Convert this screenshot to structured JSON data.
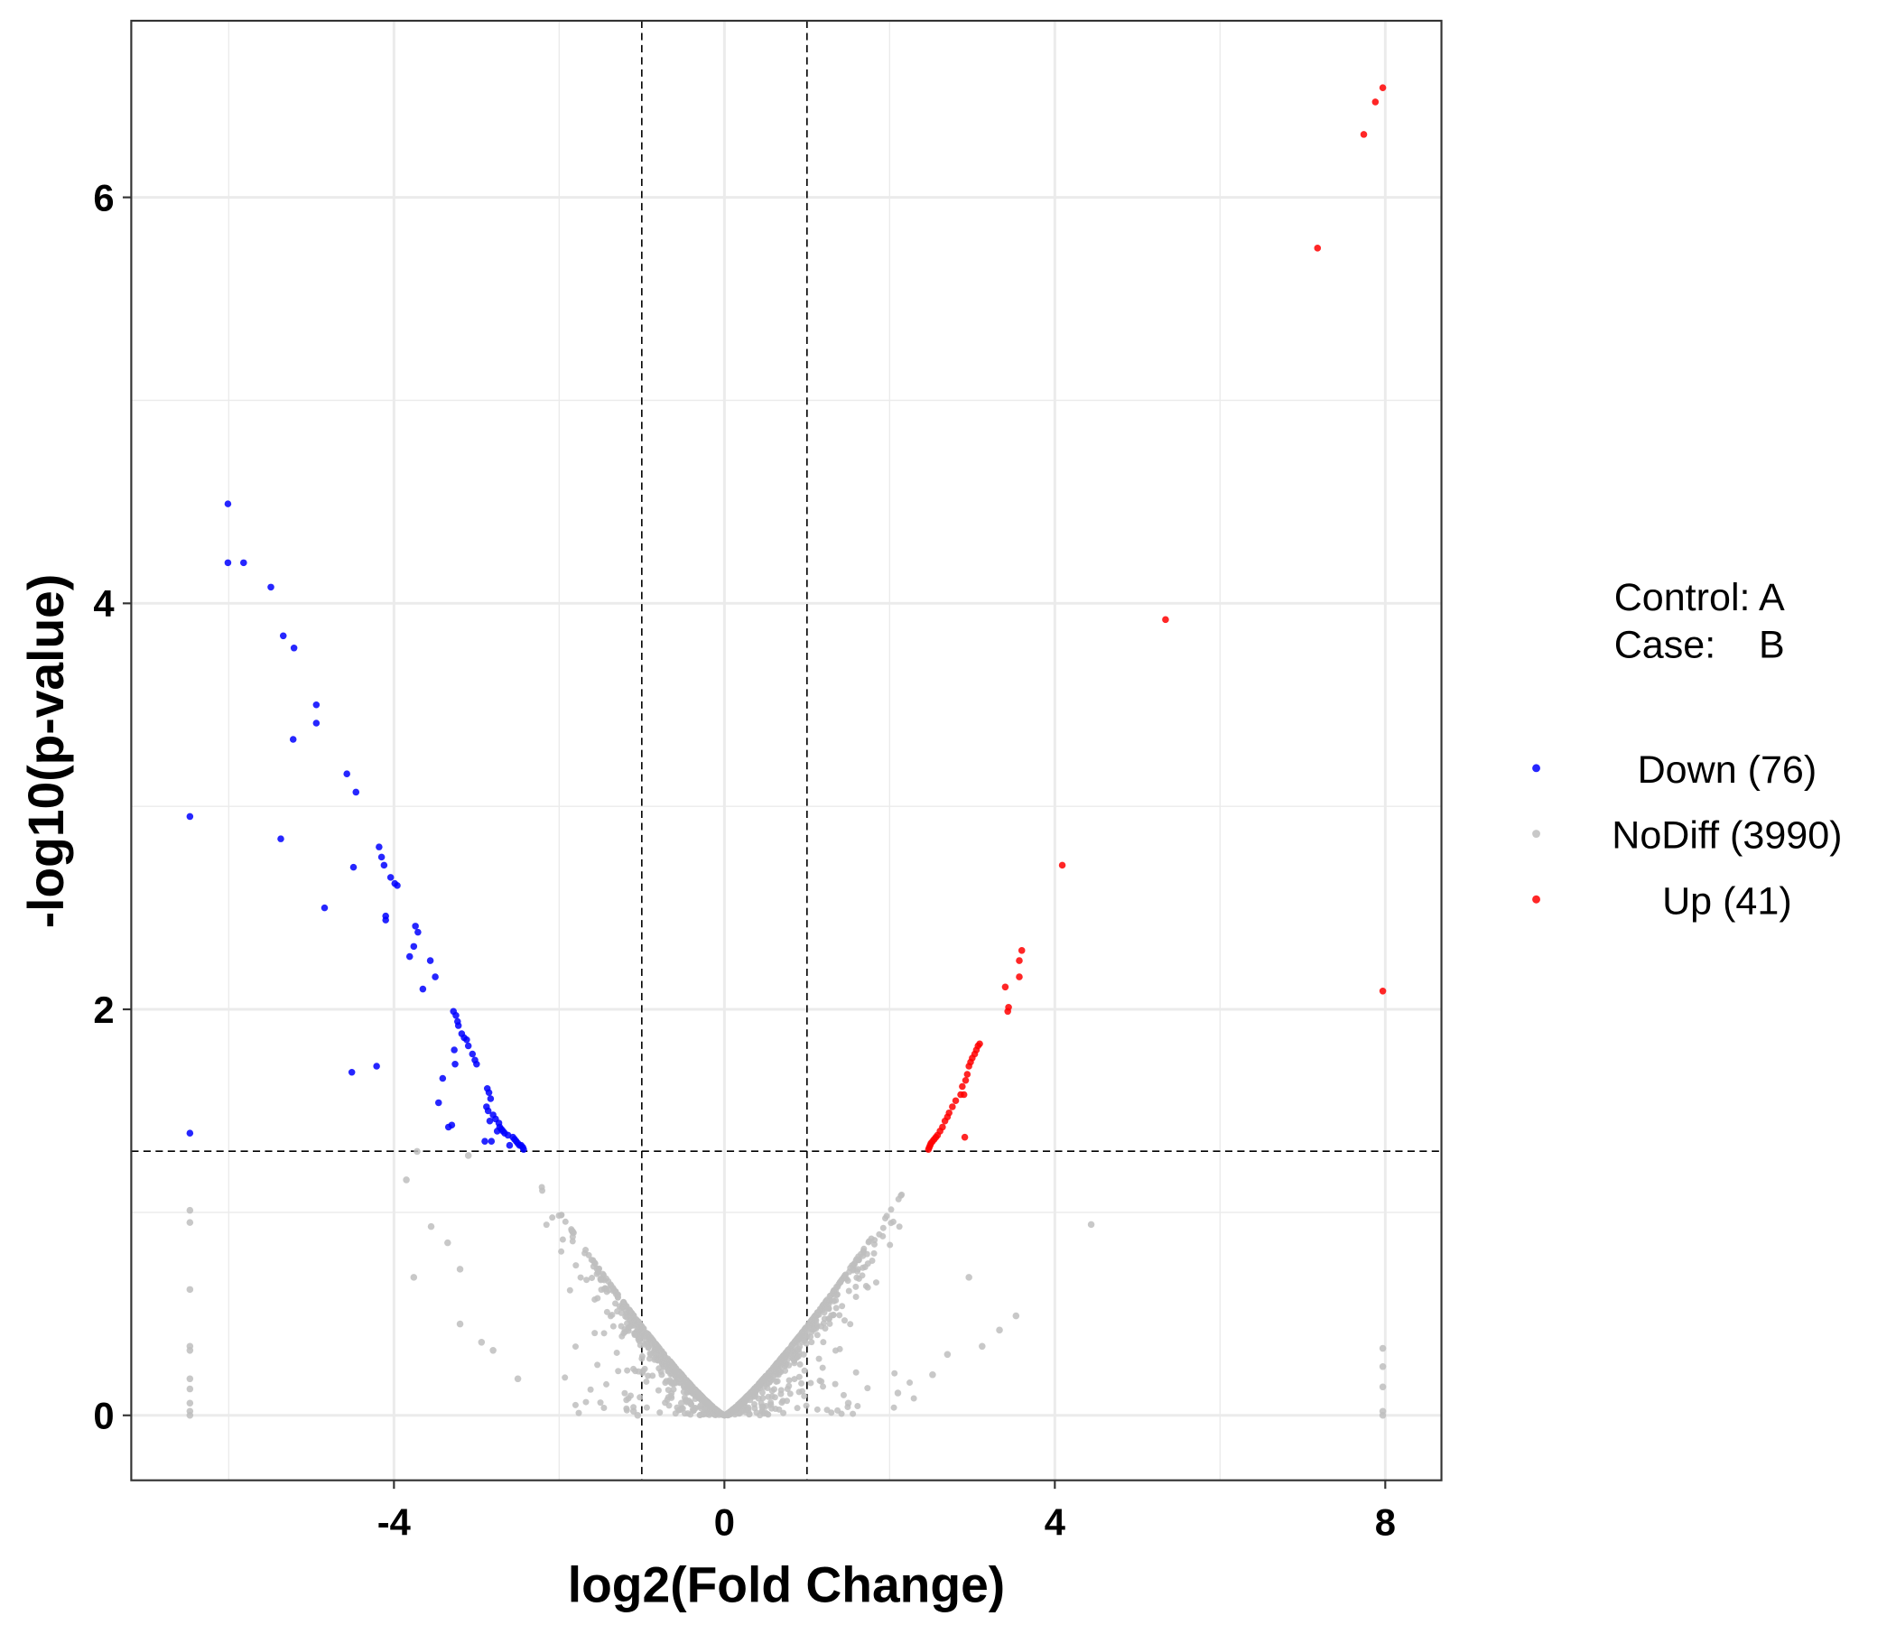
{
  "chart_data": {
    "type": "scatter",
    "title": "",
    "xlabel": "log2(Fold Change)",
    "ylabel": "-log10(p-value)",
    "xlim": [
      -7.18,
      8.68
    ],
    "ylim": [
      -0.32,
      6.87
    ],
    "xticks": [
      -4,
      0,
      4,
      8
    ],
    "xtick_labels": [
      "-4",
      "0",
      "4",
      "8"
    ],
    "yticks": [
      0,
      2,
      4,
      6
    ],
    "ytick_labels": [
      "0",
      "2",
      "4",
      "6"
    ],
    "grid": true,
    "thresholds": {
      "fc_lines": [
        -1,
        1
      ],
      "pvalue_line": 1.301
    },
    "annotation": {
      "control_line": "Control: A",
      "case_line": "Case:    B"
    },
    "legend_position": "right",
    "colors": {
      "Down": "#0000ff",
      "NoDiff": "#bebebe",
      "Up": "#ff0000"
    },
    "legend": [
      {
        "key": "Down",
        "label": "Down (76)"
      },
      {
        "key": "NoDiff",
        "label": "NoDiff (3990)"
      },
      {
        "key": "Up",
        "label": "Up (41)"
      }
    ],
    "series": [
      {
        "name": "Down",
        "count": 76,
        "points": [
          [
            -6.01,
            4.49
          ],
          [
            -6.01,
            4.2
          ],
          [
            -5.82,
            4.2
          ],
          [
            -5.49,
            4.08
          ],
          [
            -5.34,
            3.84
          ],
          [
            -5.21,
            3.78
          ],
          [
            -4.94,
            3.5
          ],
          [
            -4.94,
            3.41
          ],
          [
            -5.22,
            3.33
          ],
          [
            -4.57,
            3.16
          ],
          [
            -4.46,
            3.07
          ],
          [
            -6.47,
            2.95
          ],
          [
            -5.37,
            2.84
          ],
          [
            -4.18,
            2.8
          ],
          [
            -4.15,
            2.75
          ],
          [
            -4.12,
            2.71
          ],
          [
            -4.49,
            2.7
          ],
          [
            -4.04,
            2.65
          ],
          [
            -3.96,
            2.61
          ],
          [
            -3.99,
            2.62
          ],
          [
            -4.84,
            2.5
          ],
          [
            -4.1,
            2.46
          ],
          [
            -4.1,
            2.44
          ],
          [
            -3.74,
            2.41
          ],
          [
            -3.71,
            2.38
          ],
          [
            -3.76,
            2.31
          ],
          [
            -3.81,
            2.26
          ],
          [
            -3.56,
            2.24
          ],
          [
            -3.5,
            2.16
          ],
          [
            -3.65,
            2.1
          ],
          [
            -3.28,
            1.99
          ],
          [
            -3.25,
            1.97
          ],
          [
            -3.23,
            1.94
          ],
          [
            -3.22,
            1.92
          ],
          [
            -3.18,
            1.88
          ],
          [
            -3.15,
            1.86
          ],
          [
            -3.12,
            1.85
          ],
          [
            -3.1,
            1.82
          ],
          [
            -3.27,
            1.8
          ],
          [
            -3.05,
            1.78
          ],
          [
            -3.02,
            1.75
          ],
          [
            -3.0,
            1.73
          ],
          [
            -3.26,
            1.73
          ],
          [
            -4.51,
            1.69
          ],
          [
            -4.21,
            1.72
          ],
          [
            -3.41,
            1.66
          ],
          [
            -3.46,
            1.54
          ],
          [
            -2.87,
            1.61
          ],
          [
            -2.85,
            1.59
          ],
          [
            -2.83,
            1.56
          ],
          [
            -2.88,
            1.52
          ],
          [
            -2.86,
            1.5
          ],
          [
            -2.8,
            1.48
          ],
          [
            -2.77,
            1.46
          ],
          [
            -2.84,
            1.45
          ],
          [
            -2.73,
            1.44
          ],
          [
            -2.72,
            1.42
          ],
          [
            -2.7,
            1.41
          ],
          [
            -2.75,
            1.4
          ],
          [
            -2.68,
            1.4
          ],
          [
            -2.66,
            1.39
          ],
          [
            -3.3,
            1.43
          ],
          [
            -3.34,
            1.42
          ],
          [
            -2.62,
            1.38
          ],
          [
            -2.56,
            1.37
          ],
          [
            -2.54,
            1.36
          ],
          [
            -2.52,
            1.35
          ],
          [
            -2.5,
            1.34
          ],
          [
            -2.48,
            1.33
          ],
          [
            -2.46,
            1.33
          ],
          [
            -2.44,
            1.32
          ],
          [
            -2.9,
            1.35
          ],
          [
            -2.82,
            1.35
          ],
          [
            -2.6,
            1.33
          ],
          [
            -6.47,
            1.39
          ],
          [
            -2.43,
            1.31
          ]
        ]
      },
      {
        "name": "Up",
        "count": 41,
        "points": [
          [
            7.97,
            6.54
          ],
          [
            7.88,
            6.47
          ],
          [
            7.74,
            6.31
          ],
          [
            7.18,
            5.75
          ],
          [
            5.34,
            3.92
          ],
          [
            4.09,
            2.71
          ],
          [
            3.6,
            2.29
          ],
          [
            3.57,
            2.24
          ],
          [
            3.57,
            2.16
          ],
          [
            3.4,
            2.11
          ],
          [
            3.44,
            2.01
          ],
          [
            3.43,
            1.99
          ],
          [
            7.97,
            2.09
          ],
          [
            3.09,
            1.83
          ],
          [
            3.07,
            1.82
          ],
          [
            3.05,
            1.8
          ],
          [
            3.03,
            1.78
          ],
          [
            3.0,
            1.76
          ],
          [
            2.98,
            1.74
          ],
          [
            2.96,
            1.72
          ],
          [
            2.94,
            1.68
          ],
          [
            2.92,
            1.65
          ],
          [
            2.88,
            1.62
          ],
          [
            2.86,
            1.58
          ],
          [
            2.9,
            1.58
          ],
          [
            2.8,
            1.55
          ],
          [
            2.76,
            1.52
          ],
          [
            2.72,
            1.49
          ],
          [
            2.7,
            1.47
          ],
          [
            2.67,
            1.45
          ],
          [
            2.64,
            1.42
          ],
          [
            2.61,
            1.4
          ],
          [
            2.58,
            1.38
          ],
          [
            2.56,
            1.37
          ],
          [
            2.54,
            1.36
          ],
          [
            2.52,
            1.35
          ],
          [
            2.5,
            1.34
          ],
          [
            2.49,
            1.33
          ],
          [
            2.48,
            1.32
          ],
          [
            2.47,
            1.31
          ],
          [
            2.91,
            1.37
          ]
        ]
      },
      {
        "name": "NoDiff",
        "count": 3990,
        "points": [
          [
            -6.47,
            1.01
          ],
          [
            -6.47,
            0.95
          ],
          [
            -6.47,
            0.62
          ],
          [
            -6.47,
            0.34
          ],
          [
            -6.47,
            0.32
          ],
          [
            -6.47,
            0.18
          ],
          [
            -6.47,
            0.13
          ],
          [
            -6.47,
            0.06
          ],
          [
            -6.47,
            0.02
          ],
          [
            -6.47,
            0.0
          ],
          [
            7.97,
            0.33
          ],
          [
            7.97,
            0.24
          ],
          [
            7.97,
            0.14
          ],
          [
            7.97,
            0.02
          ],
          [
            7.97,
            0.0
          ],
          [
            4.44,
            0.94
          ],
          [
            2.96,
            0.68
          ],
          [
            3.53,
            0.49
          ],
          [
            3.12,
            0.34
          ],
          [
            3.33,
            0.42
          ],
          [
            2.7,
            0.3
          ],
          [
            2.52,
            0.2
          ],
          [
            2.1,
            0.11
          ],
          [
            1.5,
            0.06
          ],
          [
            -3.76,
            0.68
          ],
          [
            -3.85,
            1.16
          ],
          [
            -3.72,
            1.3
          ],
          [
            -3.1,
            1.28
          ],
          [
            -3.55,
            0.93
          ],
          [
            -3.35,
            0.85
          ],
          [
            -3.2,
            0.72
          ],
          [
            -3.2,
            0.45
          ],
          [
            -2.94,
            0.36
          ],
          [
            -2.8,
            0.32
          ],
          [
            -2.5,
            0.18
          ],
          [
            -1.1,
            0.02
          ],
          [
            -0.52,
            0.06
          ],
          [
            -1.05,
            0.0
          ]
        ]
      }
    ]
  }
}
